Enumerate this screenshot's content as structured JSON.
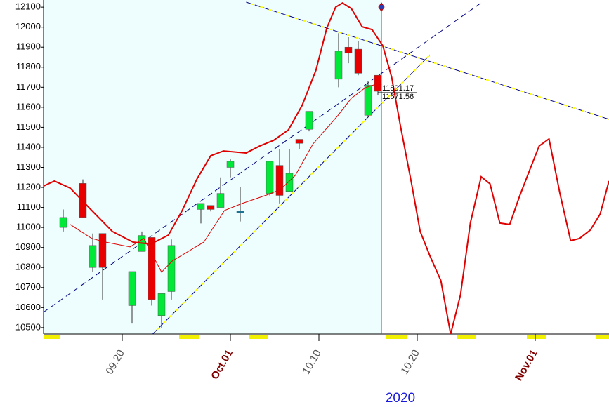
{
  "chart_data": {
    "type": "candlestick",
    "x_label": "2020",
    "up_color": "#00e838",
    "down_color": "#e80000",
    "xlim": [
      0,
      57.5
    ],
    "ylim": [
      10468,
      12118
    ],
    "xticks": [
      {
        "value": 8,
        "label": "09.20"
      },
      {
        "value": 19,
        "label": "Oct.01"
      },
      {
        "value": 28,
        "label": "10.10"
      },
      {
        "value": 38,
        "label": "10.20"
      },
      {
        "value": 50,
        "label": "Nov.01"
      }
    ],
    "yticks": [
      10500,
      10600,
      10700,
      10800,
      10900,
      11000,
      11100,
      11200,
      11300,
      11400,
      11500,
      11600,
      11700,
      11800,
      11900,
      12000,
      12100
    ],
    "x": [
      2,
      4,
      5,
      6,
      9,
      10,
      11,
      12,
      13,
      16,
      17,
      18,
      19,
      20,
      23,
      24,
      25,
      26,
      27,
      30,
      31,
      32,
      33,
      34
    ],
    "open": [
      11000,
      11220,
      10800,
      10970,
      10610,
      10880,
      10950,
      10560,
      10680,
      11090,
      11110,
      11100,
      11300,
      11080,
      11170,
      11310,
      11180,
      11440,
      11490,
      11740,
      11900,
      11890,
      11560,
      11760
    ],
    "high": [
      11090,
      11240,
      10970,
      10970,
      10780,
      10980,
      10950,
      10670,
      10940,
      11120,
      11110,
      11250,
      11340,
      11200,
      11330,
      11390,
      11390,
      11440,
      11580,
      11970,
      11950,
      11930,
      11730,
      11760
    ],
    "low": [
      10980,
      11050,
      10780,
      10640,
      10520,
      10880,
      10610,
      10500,
      10640,
      11020,
      11080,
      11100,
      11250,
      11030,
      11160,
      11120,
      11180,
      11390,
      11480,
      11700,
      11820,
      11760,
      11550,
      11660
    ],
    "close": [
      11050,
      11050,
      10910,
      10800,
      10780,
      10960,
      10640,
      10670,
      10910,
      11120,
      11090,
      11170,
      11330,
      11080,
      11330,
      11160,
      11270,
      11420,
      11580,
      11880,
      11870,
      11770,
      11710,
      11680
    ],
    "annotations": [
      11891.17,
      11671.56
    ],
    "curves": [
      {
        "color": "#e00000",
        "width": 2,
        "x": [
          0,
          1.1,
          2.7,
          4.9,
          7,
          9.1,
          10.9,
          12.7,
          14.1,
          15.6,
          17,
          18.3,
          20.6,
          22,
          23.4,
          24.9,
          26.3,
          27.7,
          28.8,
          29.7,
          30.4,
          31.3,
          32.4,
          33.4,
          34.5,
          35.4,
          36.3,
          37.4,
          38.3,
          39.3,
          40.4,
          41.4,
          42.4,
          43.4,
          44.5,
          45.4,
          46.4,
          47.4,
          48.4,
          49.5,
          50.4,
          51.4,
          52.5,
          53.6,
          54.5,
          55.6,
          56.6,
          57.5
        ],
        "values": [
          11207,
          11232,
          11197,
          11085,
          10980,
          10927,
          10917,
          10962,
          11085,
          11242,
          11358,
          11382,
          11372,
          11407,
          11435,
          11487,
          11610,
          11785,
          11995,
          12100,
          12121,
          12093,
          12002,
          11988,
          11907,
          11750,
          11505,
          11225,
          10980,
          10857,
          10735,
          10468,
          10664,
          11022,
          11253,
          11218,
          11022,
          11015,
          11155,
          11295,
          11407,
          11442,
          11172,
          10934,
          10945,
          10987,
          11067,
          11232
        ]
      },
      {
        "color": "#e00000",
        "width": 1,
        "x": [
          2.7,
          4.9,
          6.3,
          8.8,
          10.2,
          12,
          13.1,
          16.3,
          18.4,
          20.2,
          22.7,
          24.1,
          25.6,
          27.4,
          29.9,
          31.3,
          32.7,
          33.8,
          34.4
        ],
        "values": [
          11015,
          10945,
          10927,
          10903,
          10945,
          10777,
          10833,
          10927,
          11085,
          11120,
          11162,
          11190,
          11260,
          11417,
          11557,
          11645,
          11697,
          11715,
          11715
        ]
      }
    ],
    "trend_lines": [
      {
        "color": "#000080",
        "x": [
          0,
          44.6
        ],
        "values": [
          10577,
          12125
        ]
      },
      {
        "color": "#000080",
        "accent_color": "#ffff00",
        "x": [
          11.1,
          39.3
        ],
        "values": [
          10468,
          11862
        ]
      },
      {
        "color": "#000080",
        "accent_color": "#ffff00",
        "x": [
          20.6,
          57.5
        ],
        "values": [
          12125,
          11540
        ]
      }
    ]
  }
}
